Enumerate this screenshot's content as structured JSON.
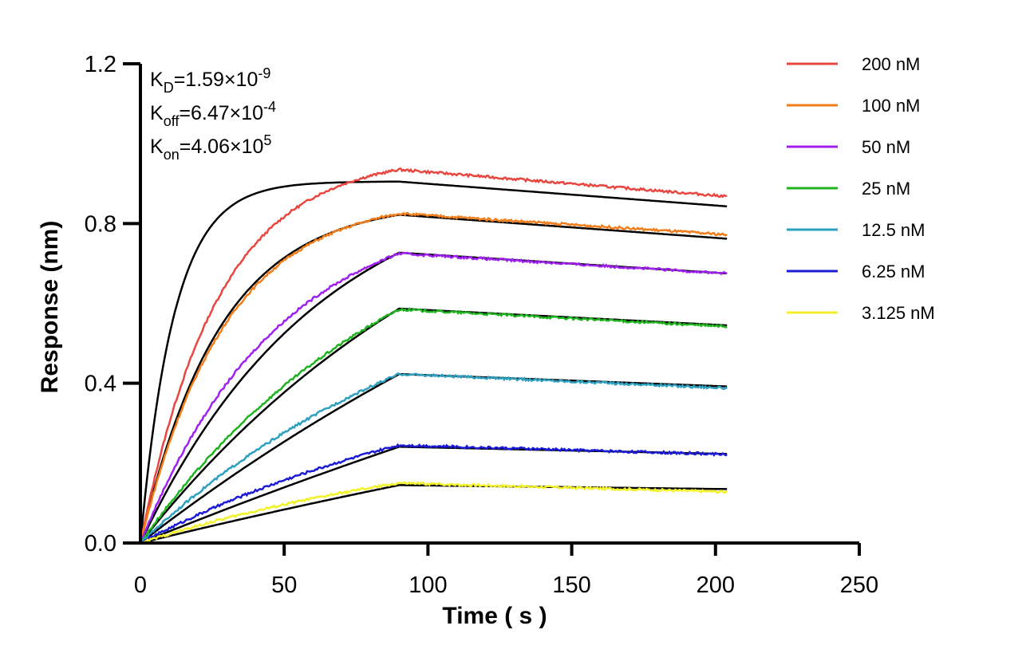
{
  "chart_data": {
    "type": "line",
    "xlabel": "Time ( s )",
    "ylabel": "Response (nm)",
    "xlim": [
      0,
      250
    ],
    "ylim": [
      0,
      1.2
    ],
    "xticks": [
      "0",
      "50",
      "100",
      "150",
      "200",
      "250"
    ],
    "yticks": [
      "0.0",
      "0.4",
      "0.8",
      "1.2"
    ],
    "grid": false,
    "legend_position": "top-right",
    "association_end": 90,
    "x_end": 204,
    "annotations": [
      {
        "base": "K",
        "sub": "D",
        "value": "=1.59×10",
        "exp": "-9"
      },
      {
        "base": "K",
        "sub": "off",
        "value": "=6.47×10",
        "exp": "-4"
      },
      {
        "base": "K",
        "sub": "on",
        "value": "=4.06×10",
        "exp": "5"
      }
    ],
    "fit_color": "#000000",
    "series": [
      {
        "name": "200 nM",
        "color": "#e8463f",
        "peak": 0.935,
        "end": 0.868,
        "meas_k": 0.037,
        "fit_k": 0.085,
        "fit_peak": 0.905,
        "fit_end": 0.843
      },
      {
        "name": "100 nM",
        "color": "#f07d1a",
        "peak": 0.825,
        "end": 0.772,
        "meas_k": 0.034,
        "fit_k": 0.036,
        "fit_peak": 0.822,
        "fit_end": 0.762
      },
      {
        "name": "50 nM",
        "color": "#a020f0",
        "peak": 0.725,
        "end": 0.675,
        "meas_k": 0.021,
        "fit_k": 0.016,
        "fit_peak": 0.727,
        "fit_end": 0.675
      },
      {
        "name": "25 nM",
        "color": "#1fb41f",
        "peak": 0.585,
        "end": 0.542,
        "meas_k": 0.011,
        "fit_k": 0.008,
        "fit_peak": 0.587,
        "fit_end": 0.545
      },
      {
        "name": "12.5 nM",
        "color": "#2ea0c0",
        "peak": 0.423,
        "end": 0.388,
        "meas_k": 0.009,
        "fit_k": 0.004,
        "fit_peak": 0.423,
        "fit_end": 0.392
      },
      {
        "name": "6.25 nM",
        "color": "#1c1cd6",
        "peak": 0.245,
        "end": 0.222,
        "meas_k": 0.008,
        "fit_k": 0.002,
        "fit_peak": 0.241,
        "fit_end": 0.223
      },
      {
        "name": "3.125 nM",
        "color": "#f2f22a",
        "peak": 0.15,
        "end": 0.128,
        "meas_k": 0.008,
        "fit_k": 0.002,
        "fit_peak": 0.145,
        "fit_end": 0.135
      }
    ]
  }
}
